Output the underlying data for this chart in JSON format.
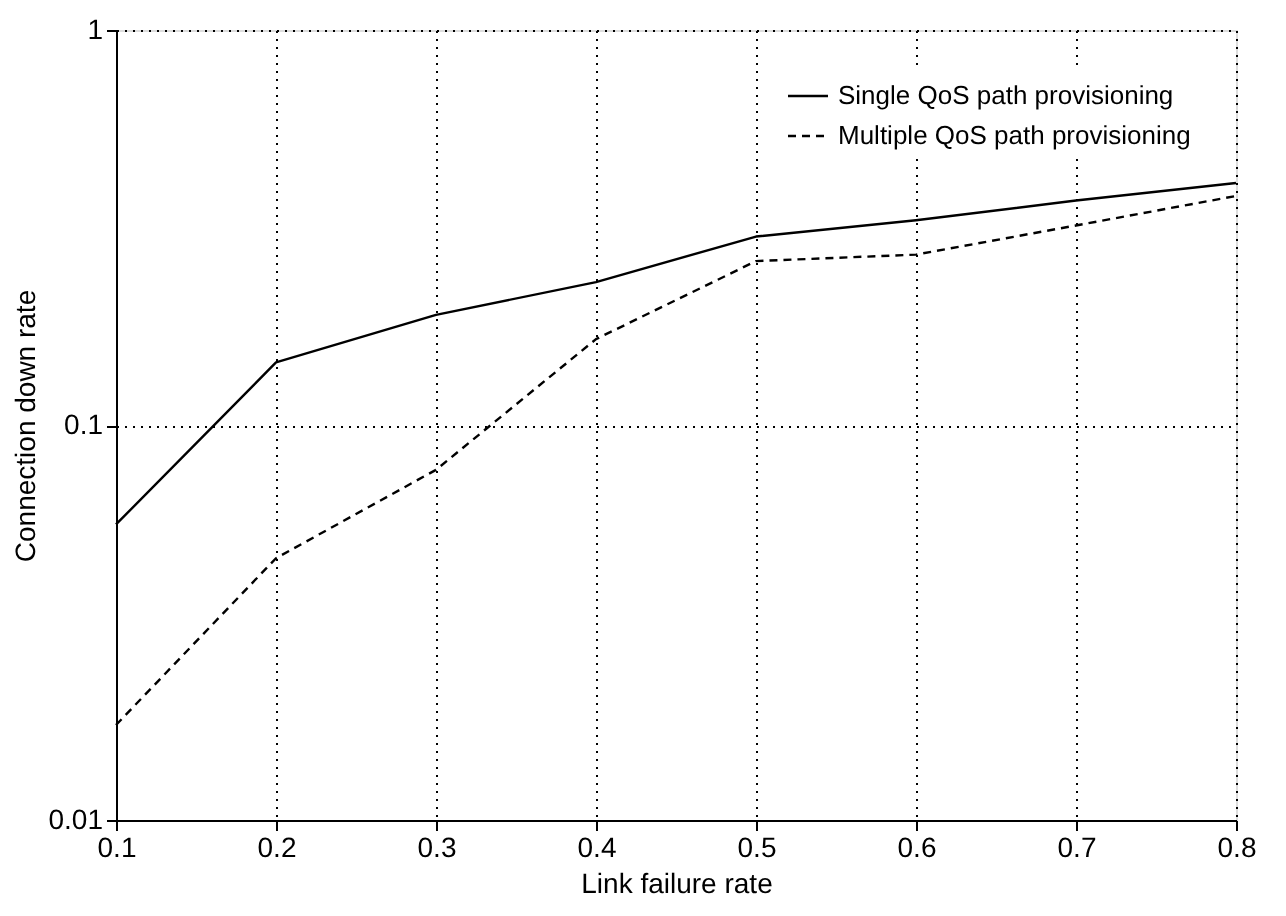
{
  "chart_data": {
    "type": "line",
    "xlabel": "Link failure rate",
    "ylabel": "Connection down rate",
    "x": [
      0.1,
      0.2,
      0.3,
      0.4,
      0.5,
      0.6,
      0.7,
      0.8
    ],
    "series": [
      {
        "name": "Single QoS path provisioning",
        "color": "#000000",
        "line_style": "solid",
        "values": [
          0.056,
          0.144,
          0.19,
          0.23,
          0.3,
          0.33,
          0.37,
          0.41
        ]
      },
      {
        "name": "Multiple QoS path provisioning",
        "color": "#000000",
        "line_style": "dashed",
        "values": [
          0.0174,
          0.046,
          0.077,
          0.165,
          0.26,
          0.27,
          0.32,
          0.38
        ]
      }
    ],
    "xlim": [
      0.1,
      0.8
    ],
    "xticks": [
      0.1,
      0.2,
      0.3,
      0.4,
      0.5,
      0.6,
      0.7,
      0.8
    ],
    "ylim": [
      0.01,
      1
    ],
    "yticks": [
      0.01,
      0.1,
      1
    ],
    "log": "y",
    "grid": true,
    "legend": "top right",
    "marker": "none"
  }
}
